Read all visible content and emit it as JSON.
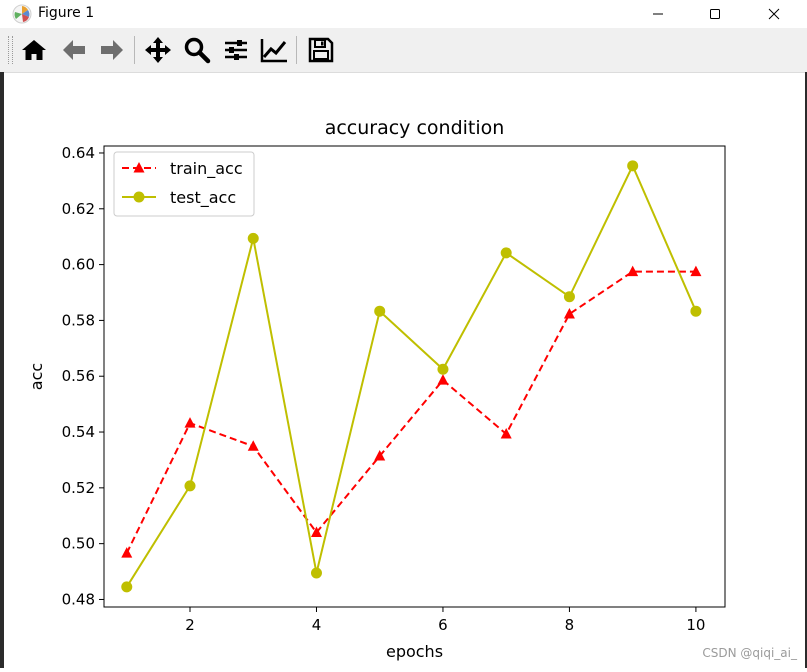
{
  "window": {
    "title": "Figure 1",
    "icon": "matplotlib-logo-icon"
  },
  "toolbar": {
    "buttons": [
      {
        "name": "home",
        "icon": "home-icon"
      },
      {
        "name": "back",
        "icon": "back-arrow-icon"
      },
      {
        "name": "forward",
        "icon": "forward-arrow-icon"
      },
      {
        "name": "pan",
        "icon": "pan-move-icon"
      },
      {
        "name": "zoom",
        "icon": "zoom-magnifier-icon"
      },
      {
        "name": "subplots",
        "icon": "configure-subplots-icon"
      },
      {
        "name": "customize",
        "icon": "edit-axis-curve-icon"
      },
      {
        "name": "save",
        "icon": "save-floppy-icon"
      }
    ]
  },
  "watermark": "CSDN @qiqi_ai_",
  "chart_data": {
    "type": "line",
    "title": "accuracy condition",
    "xlabel": "epochs",
    "ylabel": "acc",
    "x": [
      1,
      2,
      3,
      4,
      5,
      6,
      7,
      8,
      9,
      10
    ],
    "xlim": [
      0.64,
      10.46
    ],
    "ylim": [
      0.4773,
      0.6425
    ],
    "xticks": [
      2,
      4,
      6,
      8,
      10
    ],
    "xtick_labels": [
      "2",
      "4",
      "6",
      "8",
      "10"
    ],
    "yticks": [
      0.48,
      0.5,
      0.52,
      0.54,
      0.56,
      0.58,
      0.6,
      0.62,
      0.64
    ],
    "ytick_labels": [
      "0.48",
      "0.50",
      "0.52",
      "0.54",
      "0.56",
      "0.58",
      "0.60",
      "0.62",
      "0.64"
    ],
    "grid": false,
    "legend_position": "top-left",
    "series": [
      {
        "name": "train_acc",
        "values": [
          0.4966,
          0.5432,
          0.5349,
          0.504,
          0.5314,
          0.5586,
          0.5393,
          0.5823,
          0.5975,
          0.5975
        ],
        "color": "#ff0000",
        "line_style": "dashed",
        "marker": "triangle"
      },
      {
        "name": "test_acc",
        "values": [
          0.4845,
          0.5207,
          0.6094,
          0.4895,
          0.5833,
          0.5625,
          0.6042,
          0.5885,
          0.6354,
          0.5833
        ],
        "color": "#bfbf00",
        "line_style": "solid",
        "marker": "circle"
      }
    ]
  }
}
